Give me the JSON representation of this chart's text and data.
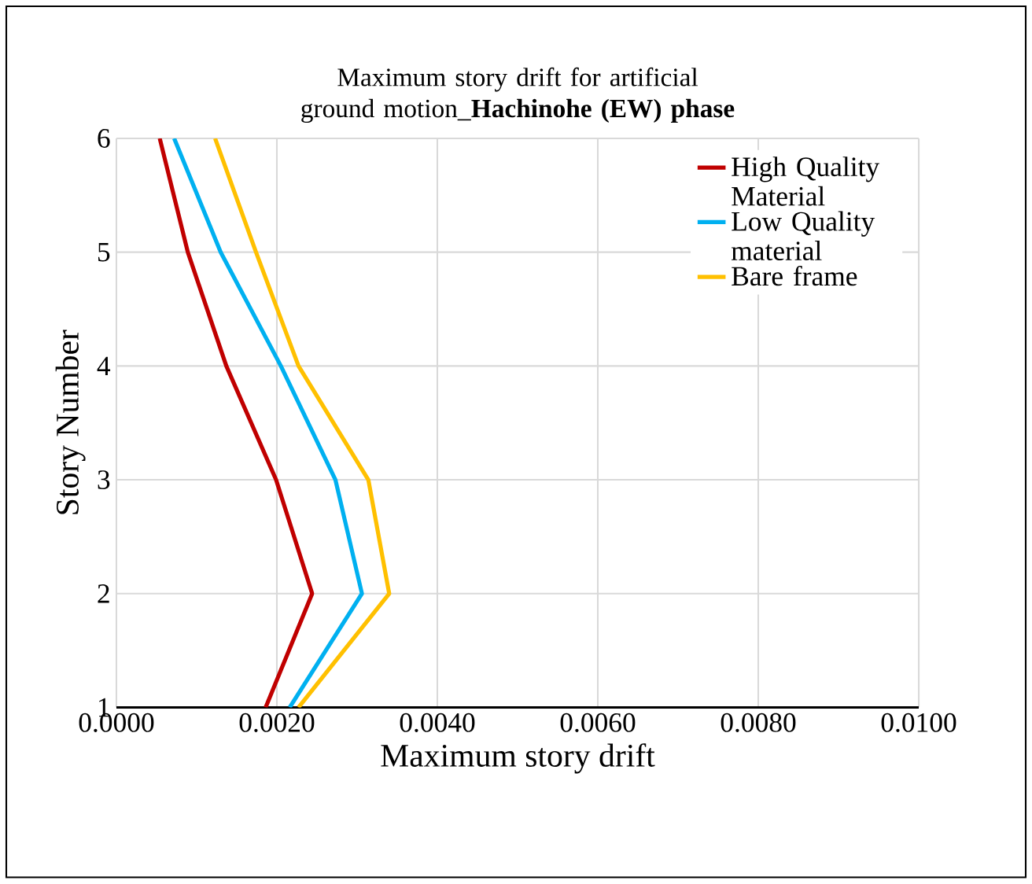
{
  "chart_data": {
    "type": "line",
    "title": "Maximum  story drift for artificial  ground motion_**Hachinohe (EW) phase**",
    "xlabel": "Maximum  story drift",
    "ylabel": "Story Number",
    "series": [
      {
        "name": "High Quality Material",
        "color": "#c00000",
        "x": [
          0.00186,
          0.00244,
          0.00199,
          0.00137,
          0.00089,
          0.00054
        ],
        "values": [
          1,
          2,
          3,
          4,
          5,
          6
        ]
      },
      {
        "name": "Low Quality material",
        "color": "#00b0f0",
        "x": [
          0.00216,
          0.00306,
          0.00273,
          0.00205,
          0.0013,
          0.00072
        ],
        "values": [
          1,
          2,
          3,
          4,
          5,
          6
        ]
      },
      {
        "name": "Bare frame",
        "color": "#ffc000",
        "x": [
          0.00227,
          0.0034,
          0.00314,
          0.00227,
          0.00174,
          0.00123
        ],
        "values": [
          1,
          2,
          3,
          4,
          5,
          6
        ]
      }
    ],
    "xlim": [
      0,
      0.01
    ],
    "ylim": [
      1,
      6
    ],
    "xticks": [
      {
        "value": 0,
        "label": "0.0000"
      },
      {
        "value": 0.002,
        "label": "0.0020"
      },
      {
        "value": 0.004,
        "label": "0.0040"
      },
      {
        "value": 0.006,
        "label": "0.0060"
      },
      {
        "value": 0.008,
        "label": "0.0080"
      },
      {
        "value": 0.01,
        "label": "0.0100"
      }
    ],
    "yticks": [
      1,
      2,
      3,
      4,
      5,
      6
    ],
    "grid": true,
    "legend": "top right",
    "marker": "none",
    "line_style": "solid"
  }
}
